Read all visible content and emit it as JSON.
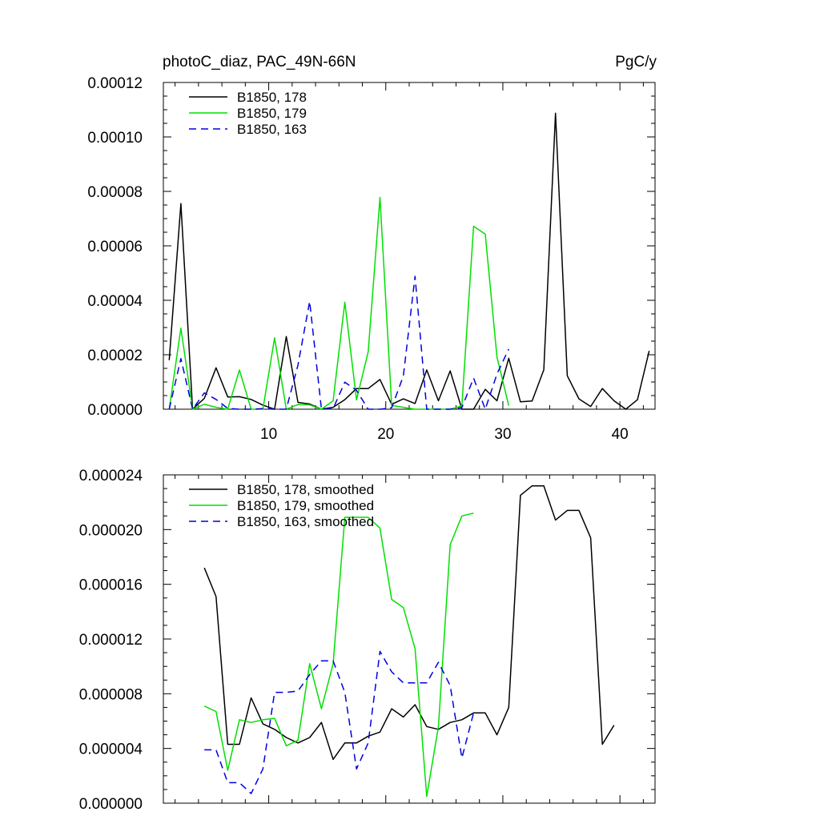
{
  "chart_data": [
    {
      "type": "line",
      "title": "photoC_diaz, PAC_49N-66N",
      "units": "PgC/y",
      "xlim": [
        1,
        43
      ],
      "ylim": [
        0,
        0.00012
      ],
      "xticks": [
        10,
        20,
        30,
        40
      ],
      "xtick_labels": [
        "10",
        "20",
        "30",
        "40"
      ],
      "yticks": [
        0,
        2e-05,
        4e-05,
        6e-05,
        8e-05,
        0.0001,
        0.00012
      ],
      "ytick_labels": [
        "0.00000",
        "0.00002",
        "0.00004",
        "0.00006",
        "0.00008",
        "0.00010",
        "0.00012"
      ],
      "legend_position": "top-left",
      "series": [
        {
          "name": "B1850, 178",
          "color": "#000000",
          "dash": "solid",
          "x": [
            1.5,
            2.5,
            3.5,
            4.5,
            5.5,
            6.5,
            7.5,
            8.5,
            9.5,
            10.5,
            11.5,
            12.5,
            13.5,
            14.5,
            15.5,
            16.5,
            17.5,
            18.5,
            19.5,
            20.5,
            21.5,
            22.5,
            23.5,
            24.5,
            25.5,
            26.5,
            27.5,
            28.5,
            29.5,
            30.5,
            31.5,
            32.5,
            33.5,
            34.5,
            35.5,
            36.5,
            37.5,
            38.5,
            39.5,
            40.5,
            41.5,
            42.5
          ],
          "y": [
            1.8e-05,
            7.55e-05,
            0.0,
            4e-06,
            1.52e-05,
            4.5e-06,
            4.6e-06,
            3.6e-06,
            1.5e-06,
            0.0,
            2.67e-05,
            2.5e-06,
            1.9e-06,
            0.0,
            7e-07,
            3.5e-06,
            7.6e-06,
            7.6e-06,
            1.09e-05,
            1.8e-06,
            3.8e-06,
            2.1e-06,
            1.44e-05,
            3.1e-06,
            1.41e-05,
            0.0,
            0.0,
            7.3e-06,
            3.1e-06,
            1.87e-05,
            2.7e-06,
            3e-06,
            1.45e-05,
            0.0001087,
            1.23e-05,
            3.8e-06,
            1e-06,
            7.6e-06,
            3.1e-06,
            0.0,
            3.5e-06,
            2.14e-05
          ]
        },
        {
          "name": "B1850, 179",
          "color": "#00e000",
          "dash": "solid",
          "x": [
            1.5,
            2.5,
            3.5,
            4.5,
            5.5,
            6.5,
            7.5,
            8.5,
            9.5,
            10.5,
            11.5,
            12.5,
            13.5,
            14.5,
            15.5,
            16.5,
            17.5,
            18.5,
            19.5,
            20.5,
            21.5,
            22.5,
            23.5,
            24.5,
            25.5,
            26.5,
            27.5,
            28.5,
            29.5,
            30.5
          ],
          "y": [
            0.0,
            2.98e-05,
            0.0,
            1.8e-06,
            7e-07,
            0.0,
            1.44e-05,
            0.0,
            0.0,
            2.62e-05,
            0.0,
            1.7e-06,
            1.6e-06,
            0.0,
            3.1e-06,
            3.93e-05,
            3.4e-06,
            2.11e-05,
            7.78e-05,
            1.4e-06,
            7e-07,
            0.0,
            0.0,
            0.0,
            0.0,
            1.2e-06,
            6.72e-05,
            6.43e-05,
            1.92e-05,
            1.3e-06
          ]
        },
        {
          "name": "B1850, 163",
          "color": "#0000e0",
          "dash": "dashed",
          "x": [
            1.5,
            2.5,
            3.5,
            4.5,
            5.5,
            6.5,
            7.5,
            8.5,
            9.5,
            10.5,
            11.5,
            12.5,
            13.5,
            14.5,
            15.5,
            16.5,
            17.5,
            18.5,
            19.5,
            20.5,
            21.5,
            22.5,
            23.5,
            24.5,
            25.5,
            26.5,
            27.5,
            28.5,
            29.5,
            30.5
          ],
          "y": [
            0.0,
            1.86e-05,
            0.0,
            6e-06,
            3.6e-06,
            3e-07,
            0.0,
            0.0,
            2e-07,
            0.0,
            0.0,
            1.62e-05,
            3.96e-05,
            0.0,
            2e-07,
            9.9e-06,
            6.9e-06,
            0.0,
            0.0,
            5e-07,
            1.22e-05,
            4.88e-05,
            0.0,
            0.0,
            0.0,
            6e-07,
            1.14e-05,
            0.0,
            1.29e-05,
            2.21e-05
          ]
        }
      ]
    },
    {
      "type": "line",
      "xlim": [
        1,
        43
      ],
      "ylim": [
        0,
        2.4e-05
      ],
      "xticks": [
        10,
        20,
        30,
        40
      ],
      "yticks": [
        0,
        4e-06,
        8e-06,
        1.2e-05,
        1.6e-05,
        2e-05,
        2.4e-05
      ],
      "ytick_labels": [
        "0.000000",
        "0.000004",
        "0.000008",
        "0.000012",
        "0.000016",
        "0.000020",
        "0.000024"
      ],
      "legend_position": "top-left",
      "series": [
        {
          "name": "B1850, 178, smoothed",
          "color": "#000000",
          "dash": "solid",
          "x": [
            4.5,
            5.5,
            6.5,
            7.5,
            8.5,
            9.5,
            10.5,
            11.5,
            12.5,
            13.5,
            14.5,
            15.5,
            16.5,
            17.5,
            18.5,
            19.5,
            20.5,
            21.5,
            22.5,
            23.5,
            24.5,
            25.5,
            26.5,
            27.5,
            28.5,
            29.5,
            30.5,
            31.5,
            32.5,
            33.5,
            34.5,
            35.5,
            36.5,
            37.5,
            38.5,
            39.5
          ],
          "y": [
            1.72e-05,
            1.51e-05,
            4.3e-06,
            4.3e-06,
            7.7e-06,
            5.8e-06,
            5.4e-06,
            4.8e-06,
            4.4e-06,
            4.8e-06,
            5.9e-06,
            3.2e-06,
            4.4e-06,
            4.4e-06,
            4.9e-06,
            5.2e-06,
            6.9e-06,
            6.3e-06,
            7.2e-06,
            5.6e-06,
            5.4e-06,
            5.9e-06,
            6.1e-06,
            6.6e-06,
            6.6e-06,
            5e-06,
            7e-06,
            2.25e-05,
            2.32e-05,
            2.32e-05,
            2.07e-05,
            2.14e-05,
            2.14e-05,
            1.94e-05,
            4.3e-06,
            5.7e-06
          ]
        },
        {
          "name": "B1850, 179, smoothed",
          "color": "#00e000",
          "dash": "solid",
          "x": [
            4.5,
            5.5,
            6.5,
            7.5,
            8.5,
            9.5,
            10.5,
            11.5,
            12.5,
            13.5,
            14.5,
            15.5,
            16.5,
            17.5,
            18.5,
            19.5,
            20.5,
            21.5,
            22.5,
            23.5,
            24.5,
            25.5,
            26.5,
            27.5
          ],
          "y": [
            7.1e-06,
            6.7e-06,
            2.4e-06,
            6.1e-06,
            5.9e-06,
            6.1e-06,
            6.2e-06,
            4.2e-06,
            4.6e-06,
            1.02e-05,
            6.9e-06,
            1.02e-05,
            2.09e-05,
            2.09e-05,
            2.09e-05,
            2.01e-05,
            1.49e-05,
            1.43e-05,
            1.13e-05,
            5e-07,
            5.6e-06,
            1.89e-05,
            2.1e-05,
            2.12e-05
          ]
        },
        {
          "name": "B1850, 163, smoothed",
          "color": "#0000e0",
          "dash": "dashed",
          "x": [
            4.5,
            5.5,
            6.5,
            7.5,
            8.5,
            9.5,
            10.5,
            11.5,
            12.5,
            13.5,
            14.5,
            15.5,
            16.5,
            17.5,
            18.5,
            19.5,
            20.5,
            21.5,
            22.5,
            23.5,
            24.5,
            25.5,
            26.5,
            27.5
          ],
          "y": [
            3.9e-06,
            3.9e-06,
            1.5e-06,
            1.5e-06,
            7e-07,
            2.5e-06,
            8.1e-06,
            8.1e-06,
            8.2e-06,
            9.4e-06,
            1.04e-05,
            1.04e-05,
            8.1e-06,
            2.5e-06,
            4.4e-06,
            1.11e-05,
            9.6e-06,
            8.8e-06,
            8.8e-06,
            8.8e-06,
            1.03e-05,
            8.6e-06,
            3.3e-06,
            6.6e-06
          ]
        }
      ]
    }
  ]
}
